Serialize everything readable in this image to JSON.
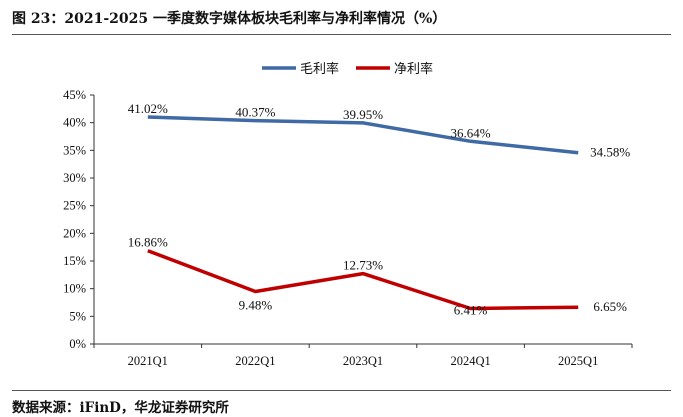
{
  "title": "图 23：2021-2025 一季度数字媒体板块毛利率与净利率情况（%）",
  "source": "数据来源：iFinD，华龙证券研究所",
  "chart_data": {
    "type": "line",
    "title": "2021-2025 一季度数字媒体板块毛利率与净利率情况（%）",
    "categories": [
      "2021Q1",
      "2022Q1",
      "2023Q1",
      "2024Q1",
      "2025Q1"
    ],
    "ylim": [
      0,
      45
    ],
    "y_ticks": [
      "0%",
      "5%",
      "10%",
      "15%",
      "20%",
      "25%",
      "30%",
      "35%",
      "40%",
      "45%"
    ],
    "legend_position": "top-center",
    "series": [
      {
        "name": "毛利率",
        "color": "#3F6AA5",
        "values": [
          41.02,
          40.37,
          39.95,
          36.64,
          34.58
        ],
        "labels": [
          "41.02%",
          "40.37%",
          "39.95%",
          "36.64%",
          "34.58%"
        ]
      },
      {
        "name": "净利率",
        "color": "#C00000",
        "values": [
          16.86,
          9.48,
          12.73,
          6.41,
          6.65
        ],
        "labels": [
          "16.86%",
          "9.48%",
          "12.73%",
          "6.41%",
          "6.65%"
        ]
      }
    ]
  }
}
